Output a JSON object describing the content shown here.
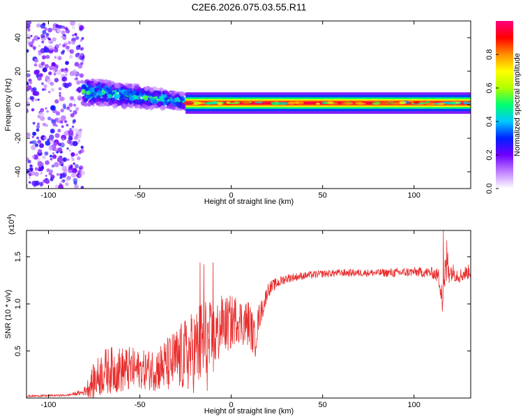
{
  "title": "C2E6.2026.075.03.55.R11",
  "chart_data": [
    {
      "type": "heatmap",
      "xlabel": "Height of straight line (km)",
      "ylabel": "Frequency (Hz)",
      "xlim": [
        -112,
        131
      ],
      "ylim": [
        -50,
        50
      ],
      "xticks": [
        -100,
        -50,
        0,
        50,
        100
      ],
      "yticks": [
        -40,
        -20,
        0,
        20,
        40
      ],
      "colorbar": {
        "label": "Normalized spectral amplitude",
        "range": [
          0,
          1
        ],
        "ticks": [
          "0.0",
          "0.2",
          "0.4",
          "0.6",
          "0.8"
        ],
        "tick_values": [
          0.0,
          0.2,
          0.4,
          0.6,
          0.8
        ],
        "colors": [
          "#ffffff",
          "#c080ff",
          "#7000ff",
          "#0020ff",
          "#00c8ff",
          "#00ff70",
          "#b0ff00",
          "#ffff00",
          "#ff9000",
          "#ff0000",
          "#ff0080"
        ]
      },
      "features": [
        {
          "name": "noise",
          "x_range": [
            -112,
            -81
          ],
          "freq_range": [
            -50,
            50
          ],
          "amplitude": 0.15
        },
        {
          "name": "onset",
          "x_range": [
            -81,
            -25
          ],
          "center_freq": [
            8,
            2
          ],
          "spread_hz": 8,
          "amplitude": 0.45
        },
        {
          "name": "carrier",
          "x_range": [
            -25,
            131
          ],
          "center_freq": 1,
          "spread_hz": 2,
          "amplitude": 0.95
        }
      ]
    },
    {
      "type": "line",
      "title": "",
      "xlabel": "Height of straight line (km)",
      "ylabel": "SNR (10 * v/v)",
      "y_multiplier": "(x10",
      "y_exponent": "4",
      "y_multiplier_close": ")",
      "xlim": [
        -112,
        131
      ],
      "ylim": [
        0,
        1.78
      ],
      "xticks": [
        -100,
        -50,
        0,
        50,
        100
      ],
      "yticks": [
        "0.5",
        "1.0",
        "1.5"
      ],
      "ytick_values": [
        0.5,
        1.0,
        1.5
      ],
      "color": "#e82c2c",
      "x": [
        -112,
        -90,
        -81,
        -75,
        -70,
        -65,
        -60,
        -55,
        -50,
        -45,
        -40,
        -35,
        -30,
        -25,
        -20,
        -17,
        -15,
        -13,
        -10,
        -7,
        -5,
        -2,
        0,
        3,
        6,
        10,
        13,
        15,
        18,
        20,
        25,
        30,
        40,
        50,
        60,
        70,
        80,
        90,
        100,
        110,
        113,
        115,
        116,
        117,
        118,
        120,
        125,
        131
      ],
      "y_center": [
        0.02,
        0.03,
        0.06,
        0.18,
        0.28,
        0.3,
        0.3,
        0.3,
        0.3,
        0.3,
        0.32,
        0.35,
        0.4,
        0.45,
        0.5,
        0.55,
        0.6,
        0.55,
        0.6,
        0.7,
        0.8,
        0.78,
        0.8,
        0.85,
        0.8,
        0.8,
        0.6,
        0.85,
        1.0,
        1.15,
        1.22,
        1.27,
        1.3,
        1.32,
        1.33,
        1.33,
        1.33,
        1.33,
        1.34,
        1.33,
        1.3,
        1.2,
        1.0,
        1.3,
        1.45,
        1.35,
        1.3,
        1.35
      ],
      "y_spread": [
        0.01,
        0.01,
        0.03,
        0.2,
        0.25,
        0.25,
        0.25,
        0.25,
        0.2,
        0.22,
        0.25,
        0.3,
        0.35,
        0.4,
        0.45,
        0.5,
        0.5,
        0.5,
        0.4,
        0.35,
        0.3,
        0.3,
        0.3,
        0.25,
        0.25,
        0.25,
        0.2,
        0.15,
        0.1,
        0.08,
        0.06,
        0.05,
        0.04,
        0.04,
        0.04,
        0.04,
        0.04,
        0.05,
        0.05,
        0.06,
        0.08,
        0.2,
        0.25,
        0.2,
        0.3,
        0.1,
        0.08,
        0.08
      ],
      "spikes": [
        {
          "x": -17,
          "y": 1.44
        },
        {
          "x": -15,
          "y": 1.42
        },
        {
          "x": -10,
          "y": 1.44
        },
        {
          "x": 116,
          "y": 1.78
        },
        {
          "x": 115.5,
          "y": 0.92
        }
      ]
    }
  ]
}
